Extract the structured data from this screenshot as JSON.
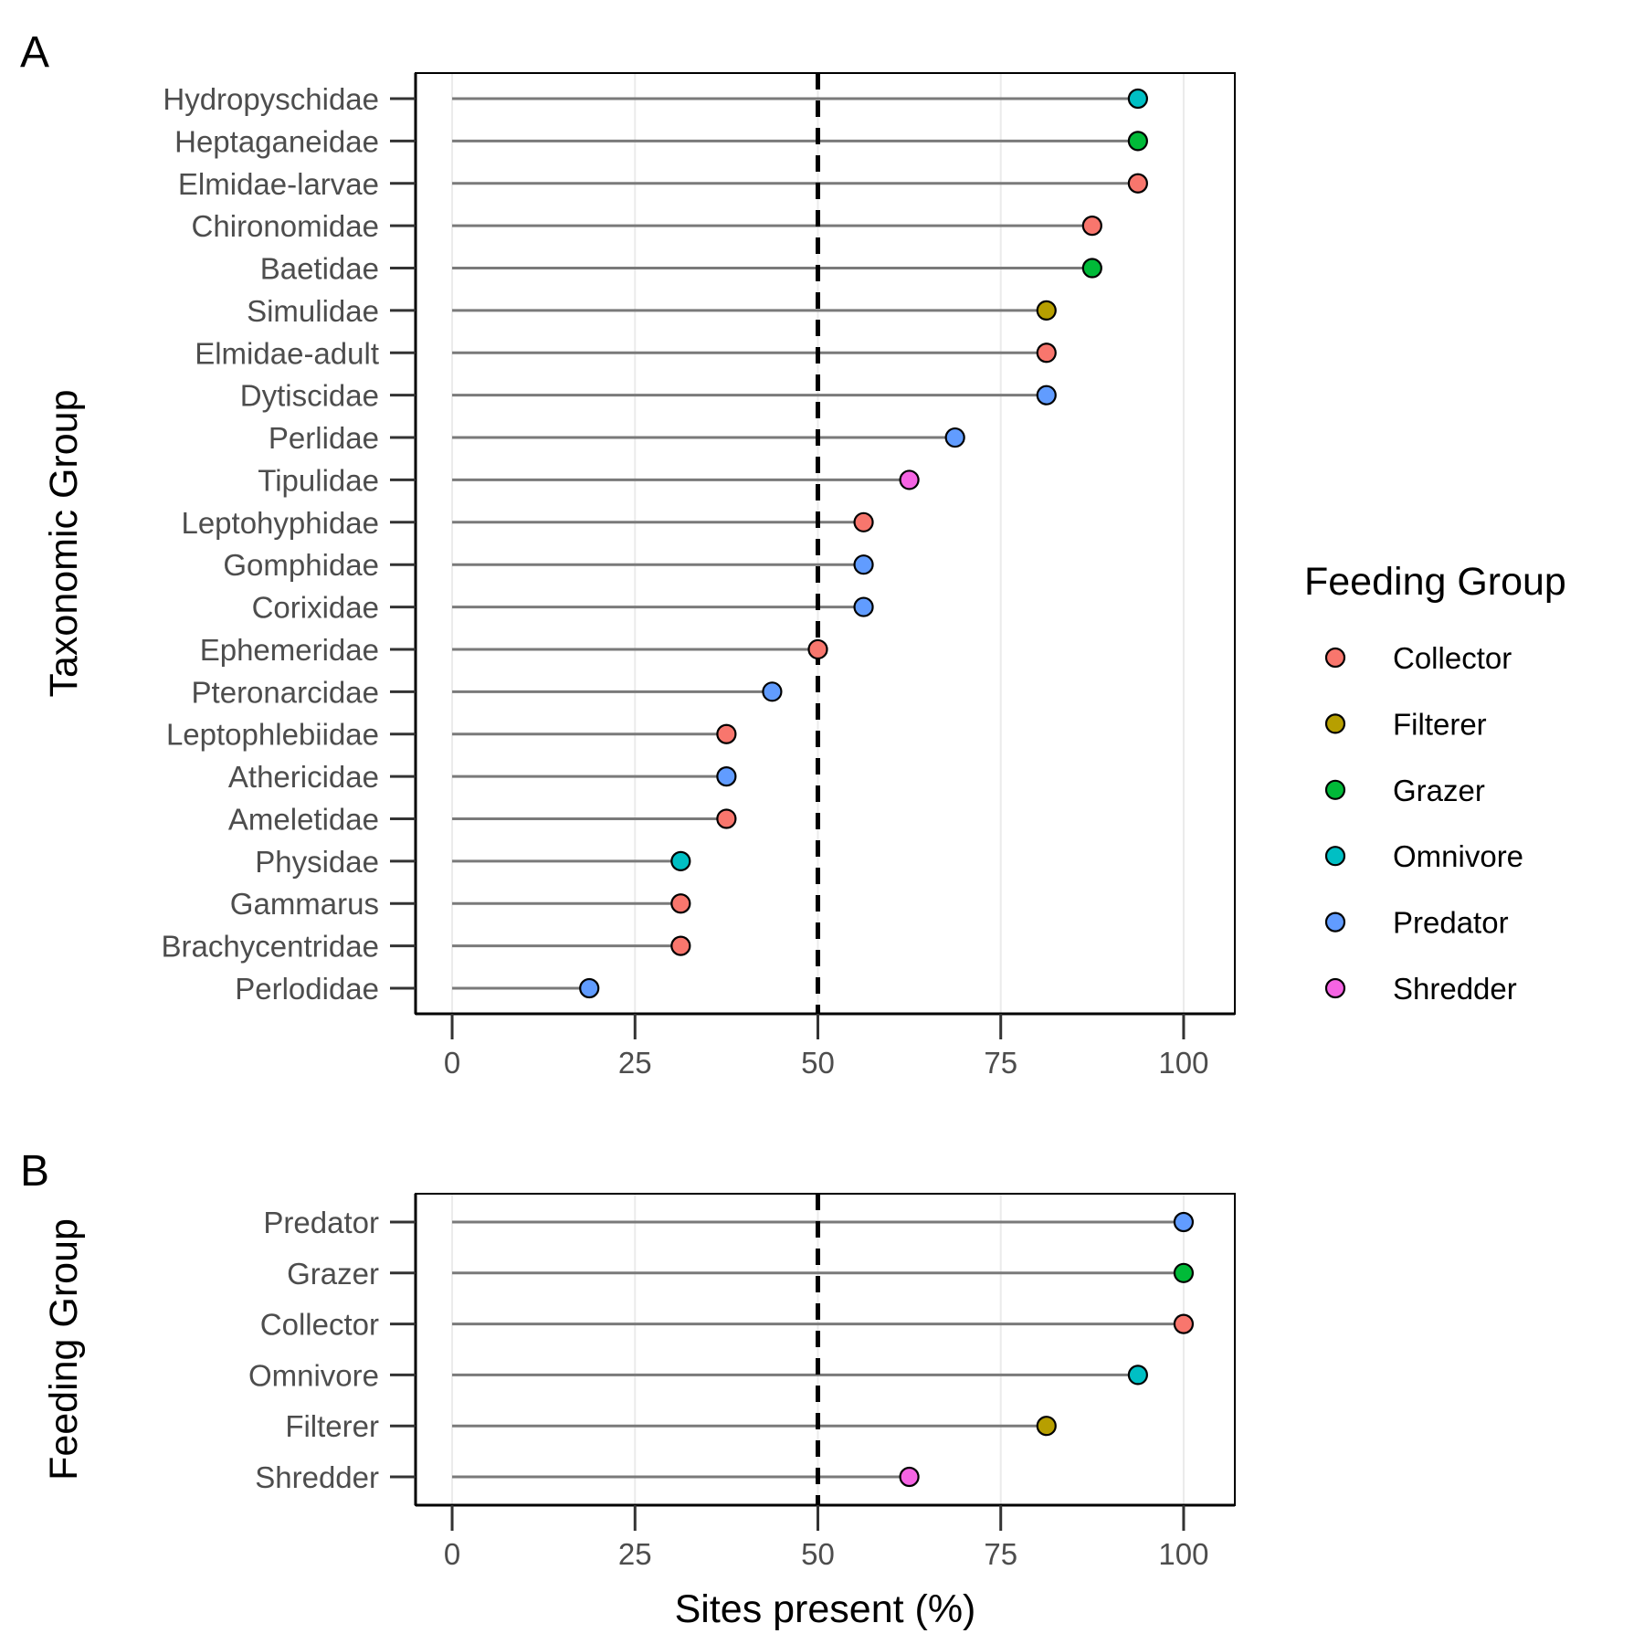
{
  "colors": {
    "Collector": "#F8766D",
    "Filterer": "#B79F00",
    "Grazer": "#00BA38",
    "Omnivore": "#00BFC4",
    "Predator": "#619CFF",
    "Shredder": "#F564E3",
    "stem": "#7a7a7a",
    "reference_line": "#000000"
  },
  "legend": {
    "title": "Feeding Group",
    "items": [
      "Collector",
      "Filterer",
      "Grazer",
      "Omnivore",
      "Predator",
      "Shredder"
    ]
  },
  "chart_data": [
    {
      "panel": "A",
      "type": "lollipop",
      "xlabel": "",
      "ylabel": "Taxonomic Group",
      "xlim": [
        -5,
        107
      ],
      "xticks": [
        0,
        25,
        50,
        75,
        100
      ],
      "reference_line": 50,
      "grid": "vertical-major",
      "points": [
        {
          "label": "Hydropyschidae",
          "value": 93.75,
          "group": "Omnivore"
        },
        {
          "label": "Heptaganeidae",
          "value": 93.75,
          "group": "Grazer"
        },
        {
          "label": "Elmidae-larvae",
          "value": 93.75,
          "group": "Collector"
        },
        {
          "label": "Chironomidae",
          "value": 87.5,
          "group": "Collector"
        },
        {
          "label": "Baetidae",
          "value": 87.5,
          "group": "Grazer"
        },
        {
          "label": "Simulidae",
          "value": 81.25,
          "group": "Filterer"
        },
        {
          "label": "Elmidae-adult",
          "value": 81.25,
          "group": "Collector"
        },
        {
          "label": "Dytiscidae",
          "value": 81.25,
          "group": "Predator"
        },
        {
          "label": "Perlidae",
          "value": 68.75,
          "group": "Predator"
        },
        {
          "label": "Tipulidae",
          "value": 62.5,
          "group": "Shredder"
        },
        {
          "label": "Leptohyphidae",
          "value": 56.25,
          "group": "Collector"
        },
        {
          "label": "Gomphidae",
          "value": 56.25,
          "group": "Predator"
        },
        {
          "label": "Corixidae",
          "value": 56.25,
          "group": "Predator"
        },
        {
          "label": "Ephemeridae",
          "value": 50,
          "group": "Collector"
        },
        {
          "label": "Pteronarcidae",
          "value": 43.75,
          "group": "Predator"
        },
        {
          "label": "Leptophlebiidae",
          "value": 37.5,
          "group": "Collector"
        },
        {
          "label": "Athericidae",
          "value": 37.5,
          "group": "Predator"
        },
        {
          "label": "Ameletidae",
          "value": 37.5,
          "group": "Collector"
        },
        {
          "label": "Physidae",
          "value": 31.25,
          "group": "Omnivore"
        },
        {
          "label": "Gammarus",
          "value": 31.25,
          "group": "Collector"
        },
        {
          "label": "Brachycentridae",
          "value": 31.25,
          "group": "Collector"
        },
        {
          "label": "Perlodidae",
          "value": 18.75,
          "group": "Predator"
        }
      ]
    },
    {
      "panel": "B",
      "type": "lollipop",
      "xlabel": "Sites present (%)",
      "ylabel": "Feeding Group",
      "xlim": [
        -5,
        107
      ],
      "xticks": [
        0,
        25,
        50,
        75,
        100
      ],
      "reference_line": 50,
      "grid": "vertical-major",
      "points": [
        {
          "label": "Predator",
          "value": 100,
          "group": "Predator"
        },
        {
          "label": "Grazer",
          "value": 100,
          "group": "Grazer"
        },
        {
          "label": "Collector",
          "value": 100,
          "group": "Collector"
        },
        {
          "label": "Omnivore",
          "value": 93.75,
          "group": "Omnivore"
        },
        {
          "label": "Filterer",
          "value": 81.25,
          "group": "Filterer"
        },
        {
          "label": "Shredder",
          "value": 62.5,
          "group": "Shredder"
        }
      ]
    }
  ]
}
